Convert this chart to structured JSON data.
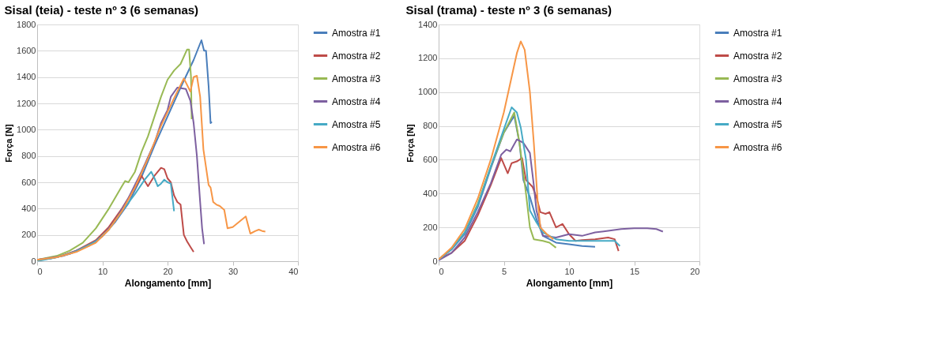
{
  "chart_data": [
    {
      "type": "line",
      "title": "Sisal (teia) - teste nº 3 (6 semanas)",
      "xlabel": "Alongamento [mm]",
      "ylabel": "Força [N]",
      "xlim": [
        0,
        40
      ],
      "xticks": [
        0,
        10,
        20,
        30,
        40
      ],
      "ylim": [
        0,
        1800
      ],
      "yticks": [
        0,
        200,
        400,
        600,
        800,
        1000,
        1200,
        1400,
        1600,
        1800
      ],
      "grid": "y",
      "legend": "right",
      "marker": "none",
      "line_style": "solid",
      "series": [
        {
          "name": "Amostra #1",
          "color": "#4a7ebb",
          "x": [
            0,
            2,
            5,
            8,
            10,
            12,
            14,
            16,
            18,
            20,
            22,
            24,
            25.2,
            25.6,
            25.9,
            26.3,
            26.6,
            26.8
          ],
          "values": [
            10,
            20,
            55,
            120,
            190,
            300,
            440,
            640,
            880,
            1100,
            1320,
            1530,
            1680,
            1600,
            1600,
            1330,
            1050,
            1060
          ]
        },
        {
          "name": "Amostra #2",
          "color": "#be4b48",
          "x": [
            0,
            3,
            6,
            9,
            11,
            13,
            15,
            16,
            17,
            18,
            19,
            19.5,
            20,
            20.5,
            21,
            21.5,
            22,
            22.5,
            23,
            23.5,
            24
          ],
          "values": [
            10,
            30,
            80,
            160,
            260,
            400,
            560,
            650,
            570,
            650,
            710,
            700,
            630,
            600,
            500,
            450,
            430,
            200,
            150,
            110,
            70
          ]
        },
        {
          "name": "Amostra #3",
          "color": "#98b954",
          "x": [
            0,
            3,
            5,
            7,
            9,
            11,
            13,
            13.5,
            14,
            15,
            16,
            17,
            18,
            19,
            20,
            21,
            22,
            23,
            23.3,
            23.6,
            23.7
          ],
          "values": [
            10,
            40,
            80,
            140,
            250,
            400,
            570,
            610,
            600,
            680,
            830,
            950,
            1100,
            1250,
            1380,
            1450,
            1500,
            1610,
            1610,
            1400,
            1080
          ]
        },
        {
          "name": "Amostra #4",
          "color": "#7d60a0",
          "x": [
            0,
            4,
            8,
            10,
            12,
            14,
            16,
            18,
            19,
            20,
            20.5,
            21.5,
            22.8,
            23.5,
            24,
            24.5,
            25,
            25.3,
            25.6
          ],
          "values": [
            10,
            40,
            120,
            190,
            310,
            480,
            680,
            900,
            1050,
            1150,
            1250,
            1320,
            1310,
            1220,
            1050,
            800,
            450,
            250,
            130
          ]
        },
        {
          "name": "Amostra #5",
          "color": "#46aac5",
          "x": [
            0,
            3,
            6,
            9,
            11,
            13,
            15,
            16.5,
            17.5,
            18,
            18.5,
            19,
            19.5,
            20,
            20.5,
            21
          ],
          "values": [
            0,
            30,
            75,
            150,
            240,
            380,
            510,
            620,
            680,
            630,
            570,
            590,
            620,
            600,
            590,
            380
          ]
        },
        {
          "name": "Amostra #6",
          "color": "#f79646",
          "x": [
            0,
            3,
            6,
            9,
            11,
            13,
            15,
            17,
            19,
            21,
            22.5,
            23.5,
            24,
            24.5,
            25,
            25.5,
            26.3,
            26.6,
            27,
            27.5,
            28,
            28.7,
            29.2,
            30,
            31,
            32,
            32.7,
            33.5,
            34,
            34.5,
            35
          ],
          "values": [
            10,
            30,
            70,
            140,
            240,
            380,
            560,
            780,
            1030,
            1240,
            1390,
            1290,
            1400,
            1410,
            1250,
            850,
            580,
            560,
            450,
            430,
            420,
            390,
            250,
            260,
            300,
            340,
            210,
            230,
            240,
            230,
            225
          ]
        }
      ]
    },
    {
      "type": "line",
      "title": "Sisal (trama) - teste nº 3 (6 semanas)",
      "xlabel": "Alongamento [mm]",
      "ylabel": "Força [N]",
      "xlim": [
        0,
        20
      ],
      "xticks": [
        0,
        5,
        10,
        15,
        20
      ],
      "ylim": [
        0,
        1400
      ],
      "yticks": [
        0,
        200,
        400,
        600,
        800,
        1000,
        1200,
        1400
      ],
      "grid": "y",
      "legend": "right",
      "marker": "none",
      "line_style": "solid",
      "series": [
        {
          "name": "Amostra #1",
          "color": "#4a7ebb",
          "x": [
            0,
            1,
            2,
            3,
            4,
            5,
            5.8,
            6.2,
            6.5,
            7,
            7.5,
            8,
            9,
            10,
            11,
            12
          ],
          "values": [
            10,
            70,
            160,
            320,
            550,
            760,
            860,
            700,
            480,
            380,
            250,
            150,
            110,
            100,
            90,
            85
          ]
        },
        {
          "name": "Amostra #2",
          "color": "#be4b48",
          "x": [
            0,
            1,
            2,
            3,
            4,
            4.8,
            5.3,
            5.6,
            6,
            6.4,
            6.7,
            7.2,
            7.5,
            7.8,
            8.2,
            8.5,
            9,
            9.5,
            10,
            10.5,
            11,
            12,
            13,
            13.5,
            13.8
          ],
          "values": [
            10,
            50,
            120,
            270,
            450,
            610,
            520,
            580,
            590,
            610,
            480,
            440,
            380,
            290,
            280,
            290,
            200,
            220,
            160,
            120,
            125,
            130,
            140,
            130,
            60
          ]
        },
        {
          "name": "Amostra #3",
          "color": "#98b954",
          "x": [
            0,
            1,
            2,
            3,
            4,
            5,
            5.8,
            6.2,
            6.7,
            7,
            7.3,
            8,
            8.5,
            9
          ],
          "values": [
            10,
            75,
            170,
            340,
            560,
            760,
            880,
            700,
            400,
            200,
            130,
            120,
            110,
            80
          ]
        },
        {
          "name": "Amostra #4",
          "color": "#7d60a0",
          "x": [
            0,
            1,
            2,
            3,
            4,
            4.8,
            5.2,
            5.5,
            6,
            6.5,
            7,
            7.3,
            7.5,
            8,
            9,
            10,
            11,
            12,
            13,
            14,
            15,
            16,
            16.7,
            17.2
          ],
          "values": [
            5,
            50,
            140,
            290,
            460,
            630,
            660,
            650,
            720,
            700,
            640,
            450,
            300,
            150,
            140,
            160,
            150,
            170,
            180,
            190,
            195,
            195,
            190,
            175
          ]
        },
        {
          "name": "Amostra #5",
          "color": "#46aac5",
          "x": [
            0,
            1,
            2,
            3,
            4,
            5,
            5.6,
            6,
            6.3,
            6.7,
            7,
            7.5,
            8,
            9,
            10,
            11,
            12,
            13,
            13.5,
            13.9
          ],
          "values": [
            10,
            70,
            170,
            330,
            560,
            780,
            910,
            880,
            790,
            600,
            300,
            230,
            170,
            130,
            120,
            120,
            120,
            120,
            120,
            90
          ]
        },
        {
          "name": "Amostra #6",
          "color": "#f79646",
          "x": [
            0,
            1,
            2,
            3,
            4,
            5,
            6,
            6.3,
            6.6,
            7,
            7.3,
            7.6,
            7.8,
            8.3,
            8.8
          ],
          "values": [
            10,
            80,
            190,
            370,
            600,
            880,
            1230,
            1300,
            1250,
            1000,
            700,
            350,
            200,
            160,
            130
          ]
        }
      ]
    }
  ]
}
